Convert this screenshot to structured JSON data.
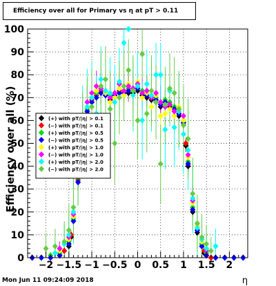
{
  "chart_data": {
    "type": "scatter",
    "title": "Efficiency over all for Primary vs  η at pT > 0.11",
    "xlabel": "η",
    "ylabel": "Efficiency over all (%)",
    "xlim": [
      -2.4,
      2.4
    ],
    "ylim": [
      0,
      100
    ],
    "x_ticks": [
      -2,
      -1.5,
      -1,
      -0.5,
      0,
      0.5,
      1,
      1.5,
      2
    ],
    "x_tick_labels": [
      "−2",
      "−1.5",
      "−1",
      "−0.5",
      "0",
      "0.5",
      "1",
      "1.5",
      "2"
    ],
    "y_ticks": [
      0,
      10,
      20,
      30,
      40,
      50,
      60,
      70,
      80,
      90,
      100
    ],
    "grid": true,
    "legend_position": "middle-left",
    "series": [
      {
        "name": "(+) with pT/|η| > 0.1",
        "color": "#000000",
        "x": [
          -2.3,
          -2.1,
          -1.9,
          -1.7,
          -1.6,
          -1.5,
          -1.45,
          -1.4,
          -1.3,
          -1.2,
          -1.1,
          -1.0,
          -0.9,
          -0.8,
          -0.7,
          -0.6,
          -0.5,
          -0.4,
          -0.3,
          -0.2,
          -0.1,
          0.0,
          0.1,
          0.2,
          0.3,
          0.4,
          0.5,
          0.6,
          0.7,
          0.8,
          0.9,
          1.0,
          1.05,
          1.1,
          1.2,
          1.3,
          1.4,
          1.45,
          1.5,
          1.6,
          1.7,
          1.9,
          2.1,
          2.3
        ],
        "y": [
          0,
          0,
          0,
          1,
          3,
          5,
          9,
          16,
          33,
          55,
          63,
          68,
          70,
          72,
          71,
          69,
          70,
          72,
          71,
          72,
          72,
          73,
          71,
          70,
          69,
          68,
          66,
          67,
          66,
          64,
          62,
          58,
          49,
          40,
          20,
          11,
          5,
          2,
          1,
          0,
          0,
          0,
          0,
          0
        ]
      },
      {
        "name": "(−) with pT/|η| > 0.1",
        "color": "#ff0000",
        "x": [
          -2.3,
          -2.1,
          -1.9,
          -1.7,
          -1.6,
          -1.5,
          -1.45,
          -1.4,
          -1.3,
          -1.2,
          -1.1,
          -1.0,
          -0.9,
          -0.8,
          -0.7,
          -0.6,
          -0.5,
          -0.4,
          -0.3,
          -0.2,
          -0.1,
          0.0,
          0.1,
          0.2,
          0.3,
          0.4,
          0.5,
          0.6,
          0.7,
          0.8,
          0.9,
          1.0,
          1.05,
          1.1,
          1.2,
          1.3,
          1.4,
          1.45,
          1.5,
          1.6,
          1.7,
          1.9,
          2.1,
          2.3
        ],
        "y": [
          0,
          0,
          0,
          1,
          3,
          6,
          10,
          18,
          34,
          56,
          64,
          69,
          71,
          73,
          72,
          70,
          71,
          73,
          72,
          73,
          73,
          74,
          72,
          71,
          70,
          69,
          67,
          68,
          67,
          65,
          63,
          59,
          50,
          41,
          21,
          12,
          6,
          3,
          1,
          0,
          0,
          0,
          0,
          0
        ]
      },
      {
        "name": "(+) with pT/|η| > 0.5",
        "color": "#00dd00",
        "x": [
          -2.3,
          -2.1,
          -1.9,
          -1.7,
          -1.5,
          -1.4,
          -1.3,
          -1.2,
          -1.1,
          -1.0,
          -0.9,
          -0.8,
          -0.7,
          -0.6,
          -0.5,
          -0.4,
          -0.3,
          -0.2,
          -0.1,
          0.0,
          0.1,
          0.2,
          0.3,
          0.4,
          0.5,
          0.6,
          0.7,
          0.8,
          0.9,
          1.0,
          1.1,
          1.2,
          1.3,
          1.4,
          1.5,
          1.7,
          1.9,
          2.1,
          2.3
        ],
        "y": [
          0,
          0,
          1,
          2,
          7,
          17,
          35,
          57,
          65,
          70,
          72,
          74,
          73,
          71,
          72,
          74,
          73,
          74,
          74,
          75,
          73,
          72,
          71,
          70,
          68,
          69,
          68,
          66,
          64,
          60,
          42,
          22,
          13,
          6,
          2,
          0,
          0,
          0,
          0
        ]
      },
      {
        "name": "(−) with pT/|η| > 0.5",
        "color": "#0000ff",
        "x": [
          -2.3,
          -2.1,
          -1.9,
          -1.7,
          -1.5,
          -1.4,
          -1.3,
          -1.2,
          -1.1,
          -1.0,
          -0.9,
          -0.8,
          -0.7,
          -0.6,
          -0.5,
          -0.4,
          -0.3,
          -0.2,
          -0.1,
          0.0,
          0.1,
          0.2,
          0.3,
          0.4,
          0.5,
          0.6,
          0.7,
          0.8,
          0.9,
          1.0,
          1.1,
          1.2,
          1.3,
          1.4,
          1.5,
          1.7,
          1.9,
          2.1,
          2.3
        ],
        "y": [
          0,
          0,
          0,
          1,
          6,
          16,
          33,
          56,
          64,
          68,
          70,
          72,
          71,
          70,
          71,
          72,
          72,
          73,
          73,
          74,
          72,
          71,
          70,
          69,
          67,
          68,
          67,
          65,
          63,
          59,
          41,
          21,
          12,
          5,
          1,
          0,
          0,
          0,
          0
        ]
      },
      {
        "name": "(+) with pT/|η| > 1.0",
        "color": "#ffff00",
        "x": [
          -1.7,
          -1.5,
          -1.4,
          -1.3,
          -1.2,
          -1.1,
          -1.0,
          -0.9,
          -0.8,
          -0.7,
          -0.6,
          -0.5,
          -0.4,
          -0.3,
          -0.2,
          -0.1,
          0.0,
          0.1,
          0.2,
          0.3,
          0.4,
          0.5,
          0.6,
          0.7,
          0.8,
          0.9,
          1.0,
          1.1,
          1.2,
          1.3,
          1.4,
          1.5
        ],
        "y": [
          3,
          8,
          18,
          36,
          58,
          66,
          70,
          73,
          75,
          72,
          68,
          70,
          74,
          71,
          76,
          73,
          77,
          70,
          72,
          66,
          71,
          62,
          63,
          65,
          62,
          66,
          60,
          44,
          24,
          14,
          7,
          3
        ]
      },
      {
        "name": "(−) with pT/|η| > 1.0",
        "color": "#ff00ff",
        "x": [
          -1.7,
          -1.5,
          -1.4,
          -1.3,
          -1.2,
          -1.1,
          -1.0,
          -0.9,
          -0.8,
          -0.7,
          -0.6,
          -0.5,
          -0.4,
          -0.3,
          -0.2,
          -0.1,
          0.0,
          0.1,
          0.2,
          0.3,
          0.4,
          0.5,
          0.6,
          0.7,
          0.8,
          0.9,
          1.0,
          1.1,
          1.2,
          1.3,
          1.4,
          1.5
        ],
        "y": [
          4,
          9,
          19,
          37,
          60,
          68,
          72,
          75,
          74,
          73,
          70,
          72,
          76,
          73,
          75,
          74,
          76,
          72,
          73,
          70,
          72,
          68,
          66,
          67,
          64,
          65,
          62,
          45,
          25,
          15,
          8,
          3
        ]
      },
      {
        "name": "(+) with pT/|η| > 2.0",
        "color": "#00ffff",
        "x": [
          -1.8,
          -1.6,
          -1.5,
          -1.4,
          -1.3,
          -1.2,
          -1.1,
          -1.0,
          -0.9,
          -0.8,
          -0.7,
          -0.6,
          -0.5,
          -0.4,
          -0.3,
          -0.2,
          -0.1,
          0.0,
          0.1,
          0.2,
          0.3,
          0.4,
          0.5,
          0.6,
          0.7,
          0.8,
          0.9,
          1.0,
          1.1,
          1.2,
          1.3,
          1.4,
          1.5,
          1.7
        ],
        "y": [
          2,
          6,
          10,
          20,
          40,
          58,
          66,
          70,
          63,
          78,
          73,
          72,
          68,
          77,
          94,
          100,
          71,
          75,
          60,
          76,
          71,
          80,
          80,
          56,
          73,
          57,
          64,
          54,
          47,
          26,
          13,
          8,
          4,
          5
        ]
      },
      {
        "name": "(−) with pT/|η| > 2.0",
        "color": "#66cc44",
        "x": [
          -2.0,
          -1.8,
          -1.6,
          -1.5,
          -1.4,
          -1.3,
          -1.2,
          -1.1,
          -1.0,
          -0.9,
          -0.8,
          -0.7,
          -0.6,
          -0.5,
          -0.4,
          -0.3,
          -0.2,
          -0.1,
          0.0,
          0.1,
          0.2,
          0.3,
          0.4,
          0.5,
          0.6,
          0.7,
          0.8,
          0.9,
          1.0,
          1.1,
          1.2,
          1.3,
          1.4,
          1.5,
          1.6
        ],
        "y": [
          4,
          5,
          7,
          12,
          22,
          40,
          55,
          62,
          66,
          57,
          75,
          78,
          65,
          50,
          70,
          75,
          82,
          73,
          60,
          89,
          63,
          73,
          68,
          41,
          67,
          74,
          72,
          65,
          58,
          52,
          28,
          15,
          9,
          6,
          3
        ]
      }
    ]
  },
  "footer": {
    "date": "Mon Jun 11 09:24:09 2018"
  }
}
